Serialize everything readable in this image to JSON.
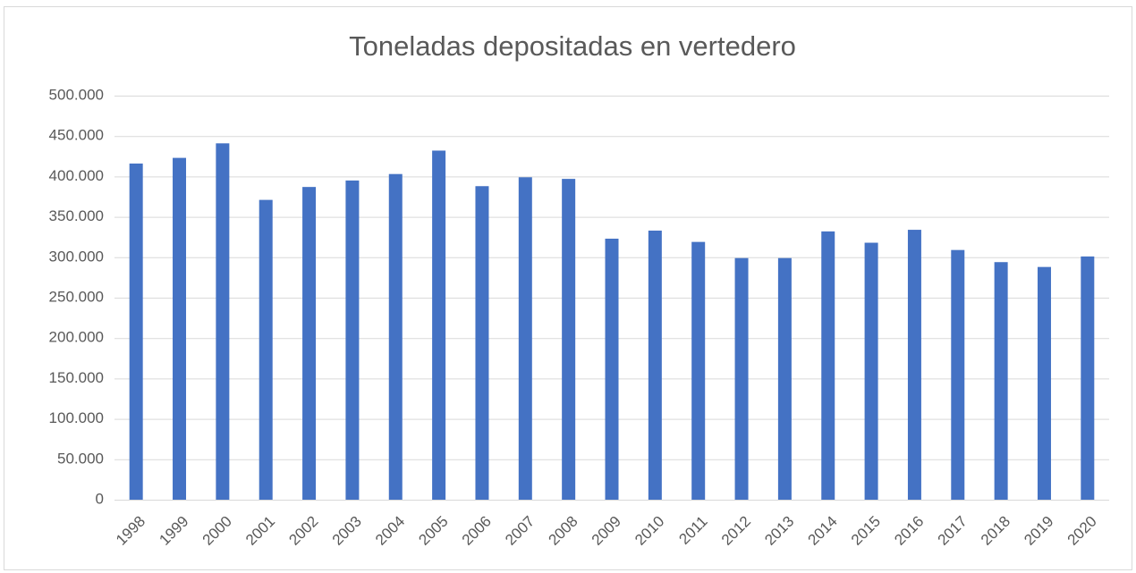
{
  "chart_data": {
    "type": "bar",
    "title": "Toneladas depositadas en vertedero",
    "categories": [
      "1998",
      "1999",
      "2000",
      "2001",
      "2002",
      "2003",
      "2004",
      "2005",
      "2006",
      "2007",
      "2008",
      "2009",
      "2010",
      "2011",
      "2012",
      "2013",
      "2014",
      "2015",
      "2016",
      "2017",
      "2018",
      "2019",
      "2020"
    ],
    "values": [
      416000,
      423000,
      441000,
      371000,
      387000,
      395000,
      403000,
      432000,
      388000,
      399000,
      397000,
      323000,
      333000,
      319000,
      299000,
      299000,
      332000,
      318000,
      334000,
      309000,
      294000,
      288000,
      301000
    ],
    "color": "#4472c4",
    "ylim": [
      0,
      500000
    ],
    "yticks": [
      0,
      {
        "value": 50000,
        "label": "50.000"
      },
      {
        "value": 100000,
        "label": "100.000"
      },
      {
        "value": 150000,
        "label": "150.000"
      },
      {
        "value": 200000,
        "label": "200.000"
      },
      {
        "value": 250000,
        "label": "250.000"
      },
      {
        "value": 300000,
        "label": "300.000"
      },
      {
        "value": 350000,
        "label": "350.000"
      },
      {
        "value": 400000,
        "label": "400.000"
      },
      {
        "value": 450000,
        "label": "450.000"
      },
      {
        "value": 500000,
        "label": "500.000"
      }
    ],
    "grid": true
  }
}
